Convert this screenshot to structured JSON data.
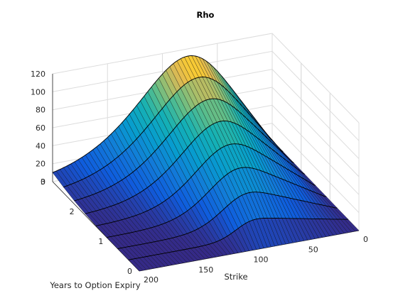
{
  "figure": {
    "title": "Rho"
  },
  "chart_data": {
    "type": "surface",
    "title": "Rho",
    "xlabel": "Strike",
    "ylabel": "Years to Option Expiry",
    "zlabel": "",
    "x_axis": {
      "range": [
        0,
        200
      ],
      "ticks": [
        0,
        50,
        100,
        150,
        200
      ],
      "tick_labels": [
        "0",
        "50",
        "100",
        "150",
        "200"
      ]
    },
    "y_axis": {
      "range": [
        0,
        3
      ],
      "ticks": [
        0,
        1,
        2,
        3
      ],
      "tick_labels": [
        "0",
        "1",
        "2",
        "3"
      ]
    },
    "z_axis": {
      "range": [
        0,
        120
      ],
      "ticks": [
        0,
        20,
        40,
        60,
        80,
        100,
        120
      ],
      "tick_labels": [
        "0",
        "20",
        "40",
        "60",
        "80",
        "100",
        "120"
      ]
    },
    "grid": true,
    "colormap": "parula",
    "expiry_lines": [
      0.375,
      0.75,
      1.125,
      1.5,
      1.875,
      2.25,
      2.625,
      3
    ],
    "peak_rho": {
      "strike": 106,
      "years": 3,
      "value": 112
    },
    "colors": {
      "surface_edge": "#000000",
      "grid": "#dcdcdc",
      "axes": "#262626"
    }
  }
}
